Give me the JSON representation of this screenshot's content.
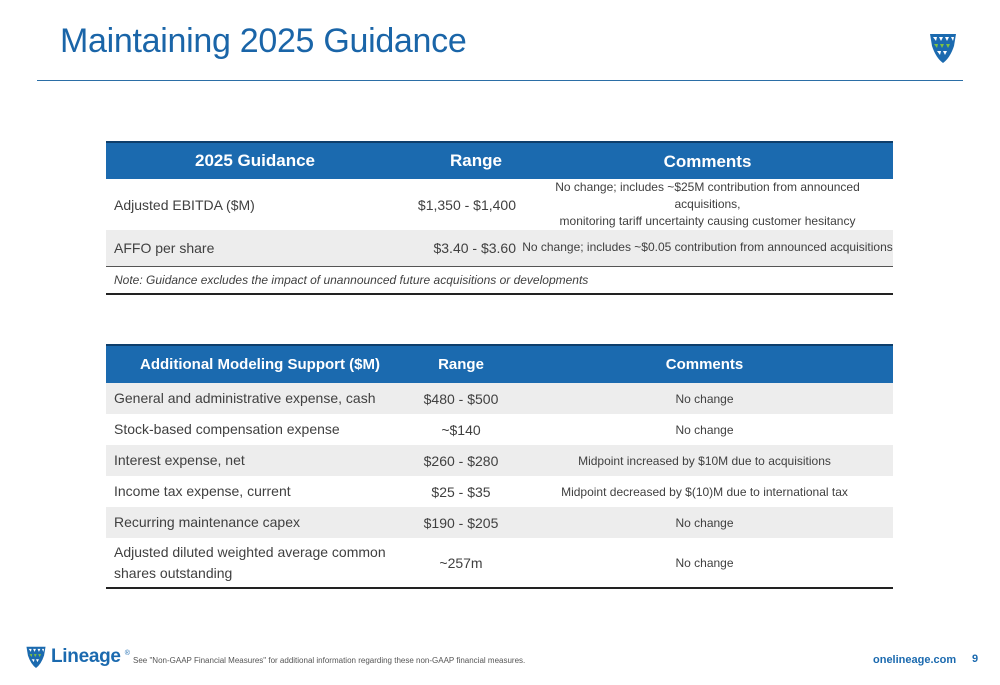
{
  "page": {
    "title": "Maintaining 2025 Guidance",
    "accent_color": "#1b6aaf",
    "logo_icon": "lineage-shield-icon"
  },
  "guidance_table": {
    "headers": [
      "2025 Guidance",
      "Range",
      "Comments"
    ],
    "rows": [
      {
        "metric": "Adjusted EBITDA ($M)",
        "range": "$1,350 - $1,400",
        "comment_line1": "No change; includes ~$25M contribution from announced acquisitions,",
        "comment_line2": "monitoring tariff uncertainty causing customer hesitancy"
      },
      {
        "metric": "AFFO per share",
        "range": "$3.40 - $3.60",
        "comment": "No change; includes ~$0.05 contribution from announced acquisitions"
      }
    ],
    "note": "Note: Guidance excludes the impact of unannounced future acquisitions or developments"
  },
  "modeling_table": {
    "headers": [
      "Additional Modeling Support ($M)",
      "Range",
      "Comments"
    ],
    "rows": [
      {
        "metric": "General and administrative expense, cash",
        "range": "$480 - $500",
        "comment": "No change"
      },
      {
        "metric": "Stock-based compensation expense",
        "range": "~$140",
        "comment": "No change"
      },
      {
        "metric": "Interest expense, net",
        "range": "$260 - $280",
        "comment": "Midpoint increased by $10M due to acquisitions"
      },
      {
        "metric": "Income tax expense, current",
        "range": "$25 - $35",
        "comment": "Midpoint decreased by $(10)M due to international tax"
      },
      {
        "metric": "Recurring maintenance capex",
        "range": "$190 - $205",
        "comment": "No change"
      },
      {
        "metric_line1": "Adjusted diluted weighted average common",
        "metric_line2": "shares outstanding",
        "range": "~257m",
        "comment": "No change"
      }
    ]
  },
  "footer": {
    "brand": "Lineage",
    "trademark": "®",
    "footnote": "See \"Non-GAAP Financial Measures\" for additional information regarding these non-GAAP financial measures.",
    "website": "onelineage.com",
    "page_number": "9"
  }
}
